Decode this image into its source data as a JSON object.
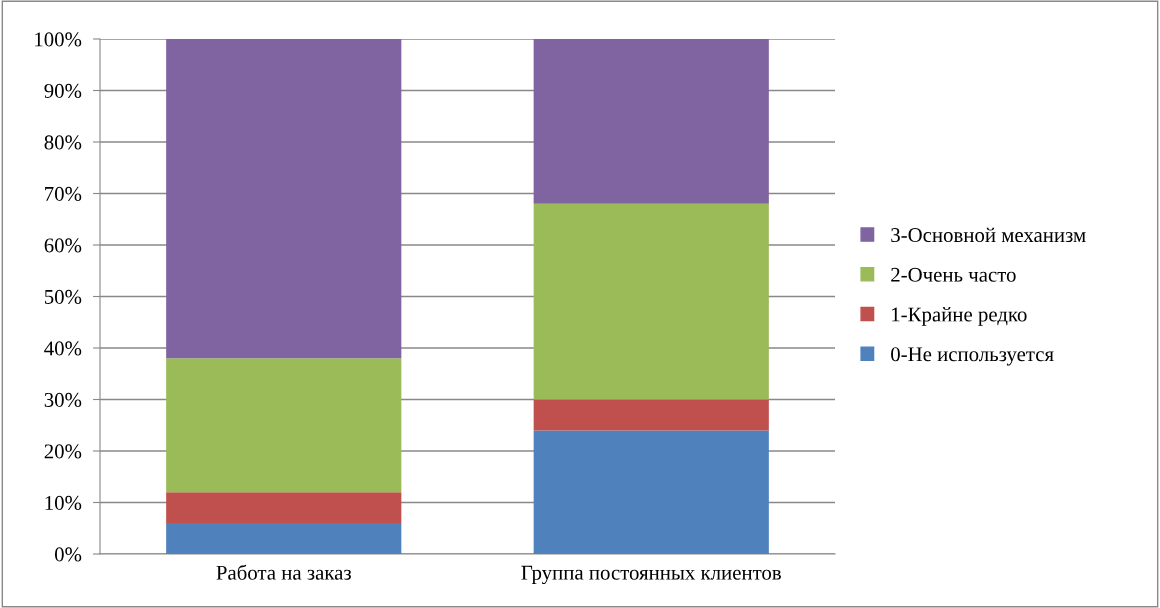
{
  "chart_data": {
    "type": "bar",
    "stacked": true,
    "categories": [
      "Работа на заказ",
      "Группа постоянных клиентов"
    ],
    "series": [
      {
        "name": "0-Не используется",
        "color": "#4f81bd",
        "values": [
          6,
          24
        ]
      },
      {
        "name": "1-Крайне редко",
        "color": "#c0504d",
        "values": [
          6,
          6
        ]
      },
      {
        "name": "2-Очень часто",
        "color": "#9bbb59",
        "values": [
          26,
          38
        ]
      },
      {
        "name": "3-Основной механизм",
        "color": "#8064a2",
        "values": [
          62,
          32
        ]
      }
    ],
    "ylim": [
      0,
      100
    ],
    "yticks": [
      {
        "value": 0,
        "label": "0%"
      },
      {
        "value": 10,
        "label": "10%"
      },
      {
        "value": 20,
        "label": "20%"
      },
      {
        "value": 30,
        "label": "30%"
      },
      {
        "value": 40,
        "label": "40%"
      },
      {
        "value": 50,
        "label": "50%"
      },
      {
        "value": 60,
        "label": "60%"
      },
      {
        "value": 70,
        "label": "70%"
      },
      {
        "value": 80,
        "label": "80%"
      },
      {
        "value": 90,
        "label": "90%"
      },
      {
        "value": 100,
        "label": "100%"
      }
    ],
    "grid": "y",
    "legend": "right"
  }
}
